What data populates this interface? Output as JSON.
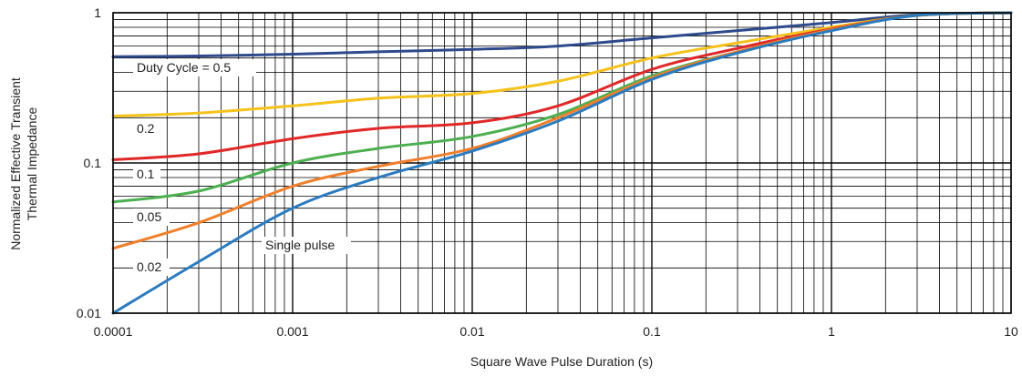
{
  "chart_data": {
    "type": "line",
    "xscale": "log",
    "yscale": "log",
    "xlim": [
      0.0001,
      10
    ],
    "ylim": [
      0.01,
      1
    ],
    "grid": true,
    "xlabel": "Square Wave Pulse Duration (s)",
    "ylabel": [
      "Normalized Effective Transient",
      "Thermal Impedance"
    ],
    "x_ticks": [
      {
        "value": 0.0001,
        "label": "0.0001"
      },
      {
        "value": 0.001,
        "label": "0.001"
      },
      {
        "value": 0.01,
        "label": "0.01"
      },
      {
        "value": 0.1,
        "label": "0.1"
      },
      {
        "value": 1,
        "label": "1"
      },
      {
        "value": 10,
        "label": "10"
      }
    ],
    "y_ticks": [
      {
        "value": 0.01,
        "label": "0.01"
      },
      {
        "value": 0.1,
        "label": "0.1"
      },
      {
        "value": 1,
        "label": "1"
      }
    ],
    "series": [
      {
        "label": "Duty Cycle = 0.5",
        "color": "#2e4a8c",
        "x": [
          0.0001,
          0.0003,
          0.001,
          0.003,
          0.01,
          0.03,
          0.1,
          0.3,
          1,
          3,
          10
        ],
        "y": [
          0.51,
          0.515,
          0.53,
          0.55,
          0.57,
          0.6,
          0.68,
          0.76,
          0.86,
          0.97,
          1.0
        ]
      },
      {
        "label": "0.2",
        "color": "#f5c21b",
        "x": [
          0.0001,
          0.0003,
          0.001,
          0.003,
          0.01,
          0.03,
          0.1,
          0.3,
          1,
          3,
          10
        ],
        "y": [
          0.205,
          0.215,
          0.24,
          0.27,
          0.29,
          0.35,
          0.5,
          0.63,
          0.8,
          0.96,
          1.0
        ]
      },
      {
        "label": "0.1",
        "color": "#e02828",
        "x": [
          0.0001,
          0.0003,
          0.001,
          0.003,
          0.01,
          0.03,
          0.1,
          0.3,
          1,
          3,
          10
        ],
        "y": [
          0.105,
          0.115,
          0.145,
          0.17,
          0.185,
          0.24,
          0.42,
          0.58,
          0.78,
          0.96,
          1.0
        ]
      },
      {
        "label": "0.05",
        "color": "#4caf50",
        "x": [
          0.0001,
          0.0003,
          0.001,
          0.003,
          0.01,
          0.03,
          0.1,
          0.3,
          1,
          3,
          10
        ],
        "y": [
          0.055,
          0.065,
          0.1,
          0.125,
          0.15,
          0.21,
          0.38,
          0.55,
          0.77,
          0.96,
          1.0
        ]
      },
      {
        "label": "0.02",
        "color": "#f07f2c",
        "x": [
          0.0001,
          0.0003,
          0.001,
          0.003,
          0.01,
          0.03,
          0.1,
          0.3,
          1,
          3,
          10
        ],
        "y": [
          0.027,
          0.04,
          0.07,
          0.095,
          0.125,
          0.2,
          0.37,
          0.55,
          0.77,
          0.96,
          1.0
        ]
      },
      {
        "label": "Single pulse",
        "color": "#2a7bbf",
        "x": [
          0.0001,
          0.0003,
          0.001,
          0.003,
          0.01,
          0.03,
          0.1,
          0.3,
          1,
          3,
          10
        ],
        "y": [
          0.01,
          0.022,
          0.05,
          0.08,
          0.12,
          0.19,
          0.36,
          0.54,
          0.76,
          0.96,
          1.0
        ]
      }
    ]
  }
}
